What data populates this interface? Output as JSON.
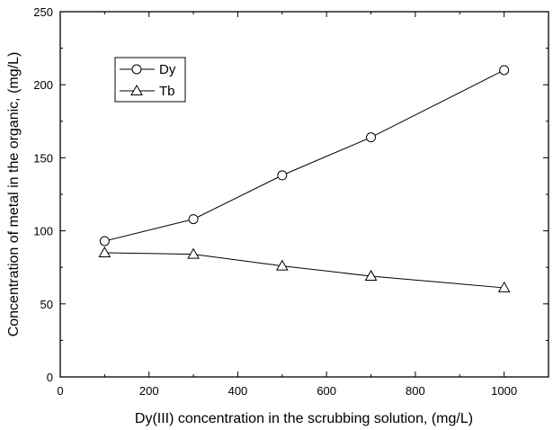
{
  "chart_data": {
    "type": "line",
    "title": "",
    "xlabel": "Dy(III) concentration in the scrubbing solution, (mg/L)",
    "ylabel": "Concentration of metal in the organic, (mg/L)",
    "xlim": [
      0,
      1100
    ],
    "ylim": [
      0,
      250
    ],
    "xticks": [
      0,
      200,
      400,
      600,
      800,
      1000
    ],
    "yticks": [
      0,
      50,
      100,
      150,
      200,
      250
    ],
    "x": [
      100,
      300,
      500,
      700,
      1000
    ],
    "series": [
      {
        "name": "Dy",
        "marker": "circle",
        "values": [
          93,
          108,
          138,
          164,
          210
        ]
      },
      {
        "name": "Tb",
        "marker": "triangle",
        "values": [
          85,
          84,
          76,
          69,
          61
        ]
      }
    ],
    "legend_position": "top-left",
    "grid": false,
    "colors": {
      "line": "#000000",
      "marker_fill": "#ffffff"
    }
  }
}
